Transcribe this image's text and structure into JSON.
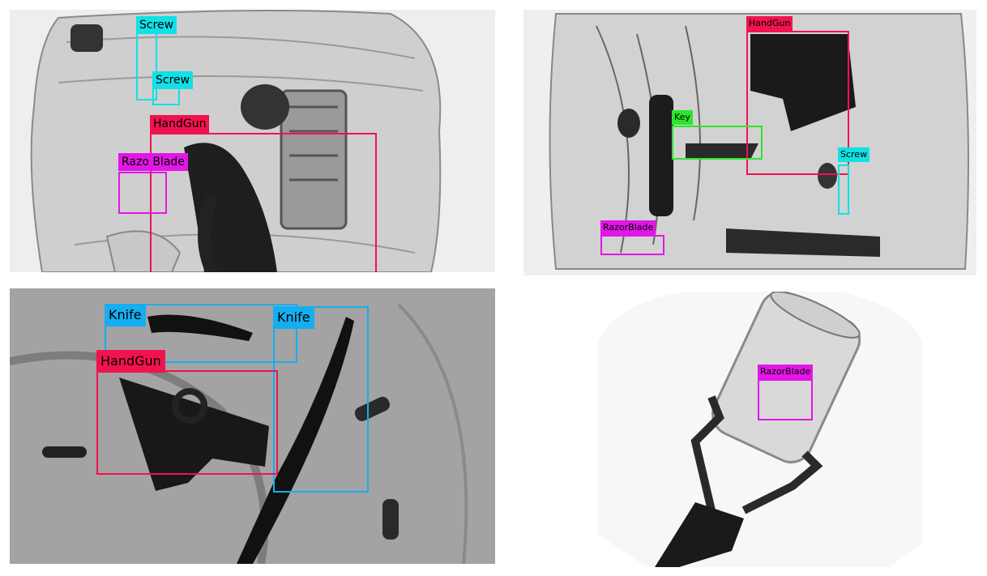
{
  "colors": {
    "handgun": "#f0134d",
    "screw": "#11e0e6",
    "razorblade": "#e216e6",
    "key": "#2ce62c",
    "knife": "#15aef0"
  },
  "panels": [
    {
      "name": "top-left bag scan",
      "detections": [
        {
          "label": "Screw",
          "class": "screw"
        },
        {
          "label": "Screw",
          "class": "screw"
        },
        {
          "label": "HandGun",
          "class": "handgun"
        },
        {
          "label": "Razo Blade",
          "class": "razorblade"
        }
      ]
    },
    {
      "name": "top-right bag scan",
      "detections": [
        {
          "label": "HandGun",
          "class": "handgun"
        },
        {
          "label": "Key",
          "class": "key"
        },
        {
          "label": "Screw",
          "class": "screw"
        },
        {
          "label": "RazorBlade",
          "class": "razorblade"
        }
      ]
    },
    {
      "name": "bottom-left bag scan",
      "detections": [
        {
          "label": "Knife",
          "class": "knife"
        },
        {
          "label": "Knife",
          "class": "knife"
        },
        {
          "label": "HandGun",
          "class": "handgun"
        }
      ]
    },
    {
      "name": "bottom-right can scan",
      "detections": [
        {
          "label": "RazorBlade",
          "class": "razorblade"
        }
      ]
    }
  ]
}
